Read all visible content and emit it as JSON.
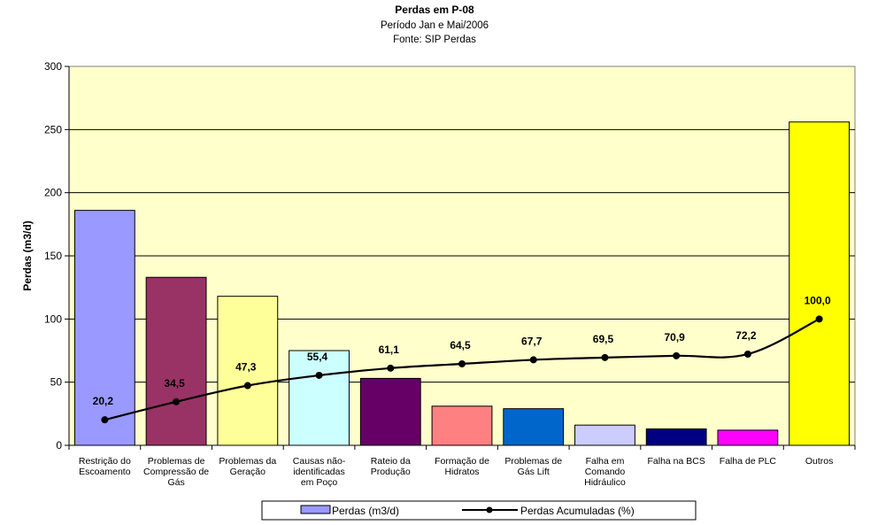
{
  "chart_data": {
    "type": "bar",
    "title": "Perdas em P-08",
    "subtitle": [
      "Período Jan e Mai/2006",
      "Fonte: SIP Perdas"
    ],
    "xlabel": "",
    "ylabel": "Perdas (m3/d)",
    "ylim": [
      0,
      300
    ],
    "yticks": [
      0,
      50,
      100,
      150,
      200,
      250,
      300
    ],
    "grid": true,
    "legend_position": "bottom",
    "categories": [
      [
        "Restrição do",
        "Escoamento"
      ],
      [
        "Problemas de",
        "Compressão de",
        "Gás"
      ],
      [
        "Problemas da",
        "Geração"
      ],
      [
        "Causas não-",
        "identificadas",
        "em Poço"
      ],
      [
        "Rateio da",
        "Produção"
      ],
      [
        "Formação de",
        "Hidratos"
      ],
      [
        "Problemas de",
        "Gás Lift"
      ],
      [
        "Falha em",
        "Comando",
        "Hidráulico"
      ],
      [
        "Falha na BCS"
      ],
      [
        "Falha de PLC"
      ],
      [
        "Outros"
      ]
    ],
    "series": [
      {
        "name": "Perdas (m3/d)",
        "kind": "bar",
        "values": [
          186,
          133,
          118,
          75,
          53,
          31,
          29,
          16,
          13,
          12,
          256
        ],
        "colors": [
          "#9999FF",
          "#993366",
          "#FFFF99",
          "#CCFFFF",
          "#660066",
          "#FF8080",
          "#0066CC",
          "#CCCCFF",
          "#000080",
          "#FF00FF",
          "#FFFF00"
        ]
      },
      {
        "name": "Perdas Acumuladas (%)",
        "kind": "line",
        "values": [
          20.2,
          34.5,
          47.3,
          55.4,
          61.1,
          64.5,
          67.7,
          69.5,
          70.9,
          72.2,
          100.0
        ],
        "labels": [
          "20,2",
          "34,5",
          "47,3",
          "55,4",
          "61,1",
          "64,5",
          "67,7",
          "69,5",
          "70,9",
          "72,2",
          "100,0"
        ],
        "color": "#000000"
      }
    ],
    "plot_background": "#FFFFCC"
  }
}
